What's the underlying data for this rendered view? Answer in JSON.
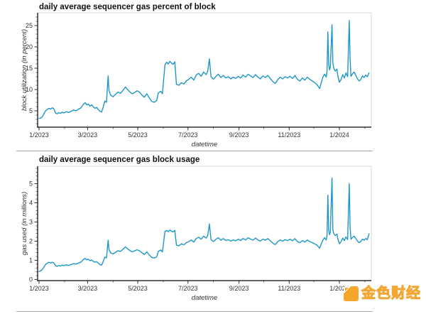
{
  "page": {
    "background": "#ffffff"
  },
  "watermark": {
    "icon": "golden-finance-logo",
    "text": "金色财经",
    "color": "#f5a62b"
  },
  "chart_data": [
    {
      "id": "sequencer-gas-percent",
      "type": "line",
      "title": "daily average sequencer gas percent of block",
      "xlabel": "datetime",
      "ylabel": "block utilization (in percent)",
      "line_color": "#1e97c8",
      "x_unit": "days since 2023-01-01",
      "xlim": [
        -1.7,
        403.8
      ],
      "ylim": [
        1.17,
        28.0
      ],
      "yticks": [
        5,
        10,
        15,
        20,
        25
      ],
      "y_minor_step": 1,
      "x_tick_days": [
        0,
        59,
        120,
        181,
        243,
        304,
        365
      ],
      "x_tick_labels": [
        "1/2023",
        "3/2023",
        "5/2023",
        "7/2023",
        "9/2023",
        "11/2023",
        "1/2024"
      ],
      "x_minor_days": [
        31,
        90,
        151,
        212,
        273,
        334,
        396
      ],
      "grid": false,
      "legend": null,
      "points": [
        [
          0,
          3.2
        ],
        [
          2,
          3.3
        ],
        [
          4,
          3.6
        ],
        [
          6,
          4.3
        ],
        [
          8,
          5.0
        ],
        [
          10,
          5.3
        ],
        [
          12,
          5.6
        ],
        [
          14,
          5.4
        ],
        [
          16,
          5.7
        ],
        [
          18,
          5.5
        ],
        [
          20,
          4.5
        ],
        [
          22,
          4.3
        ],
        [
          24,
          4.6
        ],
        [
          26,
          4.4
        ],
        [
          28,
          4.7
        ],
        [
          30,
          4.5
        ],
        [
          33,
          4.8
        ],
        [
          36,
          4.6
        ],
        [
          39,
          4.9
        ],
        [
          42,
          5.2
        ],
        [
          45,
          5.0
        ],
        [
          48,
          5.4
        ],
        [
          51,
          5.7
        ],
        [
          54,
          6.6
        ],
        [
          56,
          6.9
        ],
        [
          58,
          6.4
        ],
        [
          60,
          6.6
        ],
        [
          62,
          6.1
        ],
        [
          64,
          6.4
        ],
        [
          66,
          5.9
        ],
        [
          68,
          5.6
        ],
        [
          70,
          5.8
        ],
        [
          72,
          5.3
        ],
        [
          74,
          4.9
        ],
        [
          76,
          4.7
        ],
        [
          78,
          5.9
        ],
        [
          80,
          7.3
        ],
        [
          82,
          7.0
        ],
        [
          84,
          13.2
        ],
        [
          85,
          9.8
        ],
        [
          87,
          8.7
        ],
        [
          90,
          8.3
        ],
        [
          93,
          8.9
        ],
        [
          96,
          9.4
        ],
        [
          99,
          9.1
        ],
        [
          102,
          9.8
        ],
        [
          105,
          10.6
        ],
        [
          107,
          10.1
        ],
        [
          110,
          9.5
        ],
        [
          113,
          9.0
        ],
        [
          116,
          9.3
        ],
        [
          119,
          9.7
        ],
        [
          122,
          9.4
        ],
        [
          125,
          8.7
        ],
        [
          128,
          8.2
        ],
        [
          131,
          9.0
        ],
        [
          134,
          8.0
        ],
        [
          137,
          7.2
        ],
        [
          140,
          7.0
        ],
        [
          143,
          7.4
        ],
        [
          145,
          9.2
        ],
        [
          148,
          9.6
        ],
        [
          150,
          9.0
        ],
        [
          153,
          15.8
        ],
        [
          155,
          16.4
        ],
        [
          157,
          16.0
        ],
        [
          159,
          16.6
        ],
        [
          161,
          16.2
        ],
        [
          163,
          15.9
        ],
        [
          165,
          16.5
        ],
        [
          167,
          11.2
        ],
        [
          170,
          11.0
        ],
        [
          173,
          11.6
        ],
        [
          176,
          11.3
        ],
        [
          179,
          12.0
        ],
        [
          182,
          12.4
        ],
        [
          185,
          12.9
        ],
        [
          188,
          12.2
        ],
        [
          191,
          13.4
        ],
        [
          194,
          13.8
        ],
        [
          197,
          13.1
        ],
        [
          200,
          14.1
        ],
        [
          203,
          13.5
        ],
        [
          205,
          14.3
        ],
        [
          207,
          17.2
        ],
        [
          209,
          13.0
        ],
        [
          212,
          12.4
        ],
        [
          215,
          13.1
        ],
        [
          218,
          13.6
        ],
        [
          221,
          12.8
        ],
        [
          224,
          13.3
        ],
        [
          227,
          12.7
        ],
        [
          230,
          13.0
        ],
        [
          233,
          12.5
        ],
        [
          236,
          12.9
        ],
        [
          239,
          12.6
        ],
        [
          242,
          13.1
        ],
        [
          245,
          12.7
        ],
        [
          248,
          13.4
        ],
        [
          251,
          12.9
        ],
        [
          254,
          13.6
        ],
        [
          257,
          13.2
        ],
        [
          260,
          12.8
        ],
        [
          263,
          13.5
        ],
        [
          266,
          12.9
        ],
        [
          269,
          12.5
        ],
        [
          272,
          13.2
        ],
        [
          275,
          12.8
        ],
        [
          278,
          13.3
        ],
        [
          281,
          12.6
        ],
        [
          284,
          11.9
        ],
        [
          287,
          11.4
        ],
        [
          290,
          12.3
        ],
        [
          293,
          12.9
        ],
        [
          296,
          12.5
        ],
        [
          299,
          13.0
        ],
        [
          302,
          12.7
        ],
        [
          305,
          13.1
        ],
        [
          308,
          12.6
        ],
        [
          311,
          13.3
        ],
        [
          314,
          12.4
        ],
        [
          317,
          12.0
        ],
        [
          320,
          12.7
        ],
        [
          323,
          12.2
        ],
        [
          326,
          12.9
        ],
        [
          329,
          12.4
        ],
        [
          332,
          12.0
        ],
        [
          335,
          11.6
        ],
        [
          338,
          11.1
        ],
        [
          341,
          10.2
        ],
        [
          343,
          11.6
        ],
        [
          345,
          12.9
        ],
        [
          347,
          13.6
        ],
        [
          349,
          12.9
        ],
        [
          350,
          14.3
        ],
        [
          351,
          23.5
        ],
        [
          352,
          16.0
        ],
        [
          353,
          14.6
        ],
        [
          354,
          15.3
        ],
        [
          356,
          25.2
        ],
        [
          357,
          16.2
        ],
        [
          358,
          15.1
        ],
        [
          360,
          14.3
        ],
        [
          362,
          14.8
        ],
        [
          363,
          13.3
        ],
        [
          365,
          11.7
        ],
        [
          367,
          12.3
        ],
        [
          369,
          13.5
        ],
        [
          371,
          12.7
        ],
        [
          373,
          13.9
        ],
        [
          375,
          13.0
        ],
        [
          377,
          26.2
        ],
        [
          378,
          17.0
        ],
        [
          379,
          13.1
        ],
        [
          381,
          13.7
        ],
        [
          383,
          14.1
        ],
        [
          385,
          13.3
        ],
        [
          387,
          12.5
        ],
        [
          389,
          12.0
        ],
        [
          391,
          12.4
        ],
        [
          393,
          13.2
        ],
        [
          395,
          12.8
        ],
        [
          397,
          13.4
        ],
        [
          399,
          13.0
        ],
        [
          401,
          13.9
        ]
      ]
    },
    {
      "id": "sequencer-gas-usage",
      "type": "line",
      "title": "daily average sequencer gas block usage",
      "xlabel": "datetime",
      "ylabel": "gas used (in millions)",
      "line_color": "#1e97c8",
      "x_unit": "days since 2023-01-01",
      "xlim": [
        -1.7,
        403.8
      ],
      "ylim": [
        -0.06,
        5.91
      ],
      "yticks": [
        0,
        1,
        2,
        3,
        4,
        5
      ],
      "y_minor_step": 0.2,
      "x_tick_days": [
        0,
        59,
        120,
        181,
        243,
        304,
        365
      ],
      "x_tick_labels": [
        "1/2023",
        "3/2023",
        "5/2023",
        "7/2023",
        "9/2023",
        "11/2023",
        "1/2024"
      ],
      "x_minor_days": [
        31,
        90,
        151,
        212,
        273,
        334,
        396
      ],
      "grid": false,
      "legend": null,
      "points": [
        [
          0,
          0.42
        ],
        [
          2,
          0.45
        ],
        [
          4,
          0.52
        ],
        [
          6,
          0.65
        ],
        [
          8,
          0.78
        ],
        [
          10,
          0.85
        ],
        [
          12,
          0.9
        ],
        [
          14,
          0.86
        ],
        [
          16,
          0.9
        ],
        [
          18,
          0.87
        ],
        [
          20,
          0.72
        ],
        [
          22,
          0.68
        ],
        [
          24,
          0.73
        ],
        [
          26,
          0.7
        ],
        [
          28,
          0.75
        ],
        [
          30,
          0.72
        ],
        [
          33,
          0.77
        ],
        [
          36,
          0.73
        ],
        [
          39,
          0.78
        ],
        [
          42,
          0.83
        ],
        [
          45,
          0.8
        ],
        [
          48,
          0.86
        ],
        [
          51,
          0.91
        ],
        [
          54,
          1.05
        ],
        [
          56,
          1.1
        ],
        [
          58,
          1.02
        ],
        [
          60,
          1.06
        ],
        [
          62,
          0.98
        ],
        [
          64,
          1.02
        ],
        [
          66,
          0.94
        ],
        [
          68,
          0.9
        ],
        [
          70,
          0.93
        ],
        [
          72,
          0.85
        ],
        [
          74,
          0.78
        ],
        [
          76,
          0.75
        ],
        [
          78,
          0.94
        ],
        [
          80,
          1.17
        ],
        [
          82,
          1.12
        ],
        [
          84,
          2.05
        ],
        [
          85,
          1.57
        ],
        [
          87,
          1.39
        ],
        [
          90,
          1.33
        ],
        [
          93,
          1.42
        ],
        [
          96,
          1.5
        ],
        [
          99,
          1.46
        ],
        [
          102,
          1.57
        ],
        [
          105,
          1.7
        ],
        [
          107,
          1.62
        ],
        [
          110,
          1.52
        ],
        [
          113,
          1.44
        ],
        [
          116,
          1.49
        ],
        [
          119,
          1.55
        ],
        [
          122,
          1.5
        ],
        [
          125,
          1.39
        ],
        [
          128,
          1.31
        ],
        [
          131,
          1.44
        ],
        [
          134,
          1.28
        ],
        [
          137,
          1.15
        ],
        [
          140,
          1.12
        ],
        [
          143,
          1.18
        ],
        [
          145,
          1.47
        ],
        [
          148,
          1.54
        ],
        [
          150,
          1.44
        ],
        [
          153,
          2.5
        ],
        [
          155,
          2.56
        ],
        [
          157,
          2.5
        ],
        [
          159,
          2.58
        ],
        [
          161,
          2.52
        ],
        [
          163,
          2.48
        ],
        [
          165,
          2.56
        ],
        [
          167,
          1.79
        ],
        [
          170,
          1.76
        ],
        [
          173,
          1.86
        ],
        [
          176,
          1.81
        ],
        [
          179,
          1.92
        ],
        [
          182,
          1.98
        ],
        [
          185,
          2.06
        ],
        [
          188,
          1.95
        ],
        [
          191,
          2.14
        ],
        [
          194,
          2.21
        ],
        [
          197,
          2.1
        ],
        [
          200,
          2.26
        ],
        [
          203,
          2.16
        ],
        [
          205,
          2.29
        ],
        [
          207,
          2.9
        ],
        [
          209,
          2.08
        ],
        [
          212,
          1.98
        ],
        [
          215,
          2.1
        ],
        [
          218,
          2.18
        ],
        [
          221,
          2.05
        ],
        [
          224,
          2.13
        ],
        [
          227,
          2.03
        ],
        [
          230,
          2.08
        ],
        [
          233,
          2.0
        ],
        [
          236,
          2.06
        ],
        [
          239,
          2.02
        ],
        [
          242,
          2.1
        ],
        [
          245,
          2.03
        ],
        [
          248,
          2.14
        ],
        [
          251,
          2.06
        ],
        [
          254,
          2.18
        ],
        [
          257,
          2.11
        ],
        [
          260,
          2.05
        ],
        [
          263,
          2.16
        ],
        [
          266,
          2.06
        ],
        [
          269,
          2.0
        ],
        [
          272,
          2.11
        ],
        [
          275,
          2.05
        ],
        [
          278,
          2.13
        ],
        [
          281,
          2.02
        ],
        [
          284,
          1.9
        ],
        [
          287,
          1.82
        ],
        [
          290,
          1.97
        ],
        [
          293,
          2.06
        ],
        [
          296,
          2.0
        ],
        [
          299,
          2.08
        ],
        [
          302,
          2.03
        ],
        [
          305,
          2.1
        ],
        [
          308,
          2.02
        ],
        [
          311,
          2.13
        ],
        [
          314,
          1.98
        ],
        [
          317,
          1.92
        ],
        [
          320,
          2.03
        ],
        [
          323,
          1.95
        ],
        [
          326,
          2.06
        ],
        [
          329,
          1.98
        ],
        [
          332,
          1.92
        ],
        [
          335,
          1.86
        ],
        [
          338,
          1.78
        ],
        [
          341,
          1.63
        ],
        [
          343,
          1.86
        ],
        [
          345,
          2.06
        ],
        [
          347,
          2.18
        ],
        [
          349,
          2.06
        ],
        [
          350,
          2.29
        ],
        [
          351,
          4.4
        ],
        [
          352,
          2.56
        ],
        [
          353,
          2.34
        ],
        [
          354,
          2.45
        ],
        [
          356,
          5.3
        ],
        [
          357,
          2.59
        ],
        [
          358,
          2.42
        ],
        [
          360,
          2.29
        ],
        [
          362,
          2.37
        ],
        [
          363,
          2.13
        ],
        [
          365,
          1.87
        ],
        [
          367,
          1.97
        ],
        [
          369,
          2.16
        ],
        [
          371,
          2.03
        ],
        [
          373,
          2.22
        ],
        [
          375,
          2.08
        ],
        [
          377,
          5.0
        ],
        [
          378,
          2.72
        ],
        [
          379,
          2.1
        ],
        [
          381,
          2.19
        ],
        [
          383,
          2.26
        ],
        [
          385,
          2.13
        ],
        [
          387,
          2.0
        ],
        [
          389,
          1.92
        ],
        [
          391,
          1.98
        ],
        [
          393,
          2.11
        ],
        [
          395,
          2.05
        ],
        [
          397,
          2.14
        ],
        [
          399,
          2.08
        ],
        [
          401,
          2.38
        ]
      ]
    }
  ]
}
